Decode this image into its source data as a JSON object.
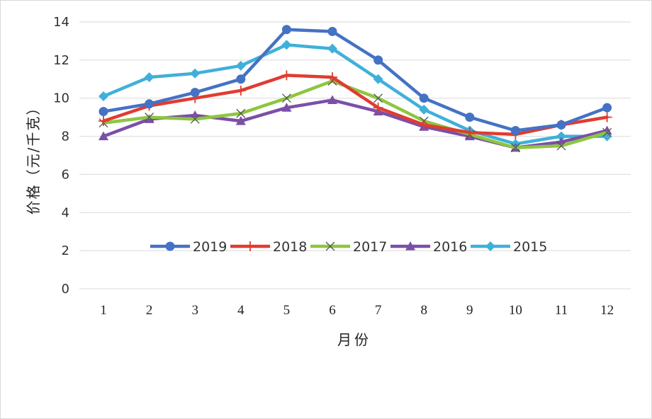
{
  "chart_data": {
    "type": "line",
    "title": "",
    "xlabel": "月份",
    "ylabel": "价格（元/千克）",
    "x": [
      "1",
      "2",
      "3",
      "4",
      "5",
      "6",
      "7",
      "8",
      "9",
      "10",
      "11",
      "12"
    ],
    "ylim": [
      0,
      14
    ],
    "yticks": [
      0,
      2,
      4,
      6,
      8,
      10,
      12,
      14
    ],
    "grid": true,
    "legend_position": "inside-bottom-center",
    "series": [
      {
        "name": "2019",
        "color": "#4472c4",
        "marker": "circle",
        "values": [
          9.3,
          9.7,
          10.3,
          11.0,
          13.6,
          13.5,
          12.0,
          10.0,
          9.0,
          8.3,
          8.6,
          9.5
        ]
      },
      {
        "name": "2018",
        "color": "#e03c31",
        "marker": "plus",
        "values": [
          8.8,
          9.6,
          10.0,
          10.4,
          11.2,
          11.1,
          9.5,
          8.6,
          8.2,
          8.1,
          8.6,
          9.0
        ]
      },
      {
        "name": "2017",
        "color": "#8dc63f",
        "marker": "x",
        "values": [
          8.7,
          9.0,
          8.9,
          9.2,
          10.0,
          10.9,
          10.0,
          8.8,
          8.1,
          7.4,
          7.5,
          8.2
        ]
      },
      {
        "name": "2016",
        "color": "#7b4fa8",
        "marker": "triangle",
        "values": [
          8.0,
          8.9,
          9.1,
          8.8,
          9.5,
          9.9,
          9.3,
          8.5,
          8.0,
          7.4,
          7.7,
          8.3
        ]
      },
      {
        "name": "2015",
        "color": "#3fb0d9",
        "marker": "diamond",
        "values": [
          10.1,
          11.1,
          11.3,
          11.7,
          12.8,
          12.6,
          11.0,
          9.4,
          8.3,
          7.6,
          8.0,
          8.0
        ]
      }
    ]
  }
}
